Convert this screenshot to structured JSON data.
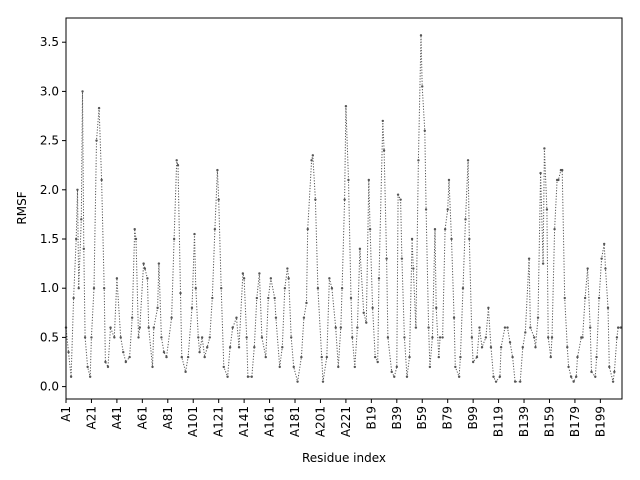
{
  "chart_data": {
    "type": "line",
    "title": "",
    "xlabel": "Residue index",
    "ylabel": "RMSF",
    "xlim": [
      0,
      437
    ],
    "ylim": [
      -0.126,
      3.746
    ],
    "grid": false,
    "line_style": "dotted",
    "color": "#555555",
    "yticks": [
      0.0,
      0.5,
      1.0,
      1.5,
      2.0,
      2.5,
      3.0,
      3.5
    ],
    "ytick_labels": [
      "0.0",
      "0.5",
      "1.0",
      "1.5",
      "2.0",
      "2.5",
      "3.0",
      "3.5"
    ],
    "xticks": [
      0,
      20,
      40,
      60,
      80,
      100,
      120,
      140,
      160,
      180,
      200,
      220,
      240,
      260,
      280,
      300,
      320,
      340,
      360,
      380,
      400,
      420
    ],
    "xtick_labels": [
      "A1",
      "A21",
      "A41",
      "A61",
      "A81",
      "A101",
      "A121",
      "A141",
      "A161",
      "A181",
      "A201",
      "A221",
      "B19",
      "B39",
      "B59",
      "B79",
      "B99",
      "B119",
      "B139",
      "B159",
      "B179",
      "B199"
    ],
    "series": [
      {
        "name": "RMSF",
        "points": [
          [
            0,
            0.6
          ],
          [
            2,
            0.35
          ],
          [
            4,
            0.1
          ],
          [
            6,
            0.9
          ],
          [
            8,
            1.5
          ],
          [
            9,
            2.0
          ],
          [
            10,
            1.0
          ],
          [
            12,
            1.7
          ],
          [
            13,
            3.0
          ],
          [
            14,
            1.4
          ],
          [
            15,
            0.5
          ],
          [
            17,
            0.2
          ],
          [
            19,
            0.1
          ],
          [
            20,
            0.5
          ],
          [
            22,
            1.0
          ],
          [
            24,
            2.5
          ],
          [
            26,
            2.83
          ],
          [
            28,
            2.1
          ],
          [
            30,
            1.0
          ],
          [
            31,
            0.25
          ],
          [
            33,
            0.2
          ],
          [
            35,
            0.6
          ],
          [
            38,
            0.5
          ],
          [
            40,
            1.1
          ],
          [
            43,
            0.5
          ],
          [
            45,
            0.35
          ],
          [
            47,
            0.25
          ],
          [
            50,
            0.3
          ],
          [
            52,
            0.7
          ],
          [
            54,
            1.6
          ],
          [
            55,
            1.5
          ],
          [
            57,
            0.5
          ],
          [
            58,
            0.6
          ],
          [
            61,
            1.25
          ],
          [
            62,
            1.2
          ],
          [
            64,
            1.1
          ],
          [
            65,
            0.6
          ],
          [
            68,
            0.2
          ],
          [
            69,
            0.6
          ],
          [
            72,
            0.8
          ],
          [
            73,
            1.25
          ],
          [
            75,
            0.5
          ],
          [
            77,
            0.35
          ],
          [
            79,
            0.3
          ],
          [
            83,
            0.7
          ],
          [
            85,
            1.5
          ],
          [
            87,
            2.3
          ],
          [
            88,
            2.25
          ],
          [
            90,
            0.95
          ],
          [
            91,
            0.3
          ],
          [
            94,
            0.15
          ],
          [
            96,
            0.3
          ],
          [
            99,
            0.8
          ],
          [
            101,
            1.55
          ],
          [
            102,
            1.0
          ],
          [
            104,
            0.5
          ],
          [
            105,
            0.35
          ],
          [
            107,
            0.5
          ],
          [
            109,
            0.3
          ],
          [
            111,
            0.4
          ],
          [
            113,
            0.5
          ],
          [
            115,
            0.9
          ],
          [
            117,
            1.6
          ],
          [
            119,
            2.2
          ],
          [
            120,
            1.9
          ],
          [
            122,
            1.0
          ],
          [
            124,
            0.2
          ],
          [
            127,
            0.1
          ],
          [
            129,
            0.4
          ],
          [
            131,
            0.6
          ],
          [
            134,
            0.7
          ],
          [
            136,
            0.4
          ],
          [
            139,
            1.15
          ],
          [
            140,
            1.1
          ],
          [
            142,
            0.5
          ],
          [
            143,
            0.1
          ],
          [
            146,
            0.1
          ],
          [
            148,
            0.4
          ],
          [
            150,
            0.9
          ],
          [
            152,
            1.15
          ],
          [
            154,
            0.5
          ],
          [
            157,
            0.3
          ],
          [
            159,
            0.9
          ],
          [
            161,
            1.1
          ],
          [
            164,
            0.9
          ],
          [
            165,
            0.7
          ],
          [
            168,
            0.2
          ],
          [
            170,
            0.4
          ],
          [
            172,
            1.0
          ],
          [
            174,
            1.2
          ],
          [
            175,
            1.1
          ],
          [
            177,
            0.5
          ],
          [
            179,
            0.2
          ],
          [
            182,
            0.05
          ],
          [
            185,
            0.3
          ],
          [
            187,
            0.7
          ],
          [
            189,
            0.85
          ],
          [
            190,
            1.6
          ],
          [
            193,
            2.3
          ],
          [
            194,
            2.35
          ],
          [
            196,
            1.9
          ],
          [
            198,
            1.0
          ],
          [
            201,
            0.3
          ],
          [
            202,
            0.05
          ],
          [
            205,
            0.3
          ],
          [
            207,
            1.1
          ],
          [
            209,
            1.0
          ],
          [
            212,
            0.6
          ],
          [
            214,
            0.2
          ],
          [
            216,
            0.6
          ],
          [
            217,
            1.0
          ],
          [
            219,
            1.9
          ],
          [
            220,
            2.85
          ],
          [
            222,
            2.1
          ],
          [
            224,
            0.9
          ],
          [
            225,
            0.5
          ],
          [
            227,
            0.2
          ],
          [
            229,
            0.6
          ],
          [
            231,
            1.4
          ],
          [
            234,
            0.75
          ],
          [
            236,
            0.65
          ],
          [
            238,
            2.1
          ],
          [
            239,
            1.6
          ],
          [
            241,
            0.8
          ],
          [
            243,
            0.3
          ],
          [
            245,
            0.25
          ],
          [
            246,
            1.1
          ],
          [
            249,
            2.7
          ],
          [
            250,
            2.4
          ],
          [
            252,
            1.3
          ],
          [
            253,
            0.5
          ],
          [
            256,
            0.15
          ],
          [
            258,
            0.1
          ],
          [
            260,
            0.2
          ],
          [
            261,
            1.95
          ],
          [
            263,
            1.9
          ],
          [
            264,
            1.3
          ],
          [
            266,
            0.5
          ],
          [
            268,
            0.1
          ],
          [
            270,
            0.3
          ],
          [
            272,
            1.5
          ],
          [
            273,
            1.2
          ],
          [
            275,
            0.6
          ],
          [
            277,
            2.3
          ],
          [
            279,
            3.57
          ],
          [
            280,
            3.05
          ],
          [
            282,
            2.6
          ],
          [
            283,
            1.8
          ],
          [
            285,
            0.6
          ],
          [
            286,
            0.2
          ],
          [
            288,
            0.5
          ],
          [
            290,
            1.6
          ],
          [
            291,
            0.8
          ],
          [
            293,
            0.3
          ],
          [
            294,
            0.5
          ],
          [
            296,
            0.5
          ],
          [
            298,
            1.6
          ],
          [
            300,
            1.8
          ],
          [
            301,
            2.1
          ],
          [
            303,
            1.5
          ],
          [
            305,
            0.7
          ],
          [
            306,
            0.2
          ],
          [
            309,
            0.1
          ],
          [
            310,
            0.3
          ],
          [
            312,
            1.0
          ],
          [
            314,
            1.7
          ],
          [
            316,
            2.3
          ],
          [
            317,
            1.5
          ],
          [
            319,
            0.5
          ],
          [
            320,
            0.25
          ],
          [
            323,
            0.3
          ],
          [
            325,
            0.6
          ],
          [
            327,
            0.4
          ],
          [
            330,
            0.5
          ],
          [
            332,
            0.8
          ],
          [
            334,
            0.4
          ],
          [
            336,
            0.1
          ],
          [
            338,
            0.05
          ],
          [
            341,
            0.1
          ],
          [
            342,
            0.4
          ],
          [
            345,
            0.6
          ],
          [
            347,
            0.6
          ],
          [
            349,
            0.45
          ],
          [
            351,
            0.3
          ],
          [
            353,
            0.05
          ],
          [
            357,
            0.05
          ],
          [
            359,
            0.4
          ],
          [
            361,
            0.55
          ],
          [
            364,
            1.3
          ],
          [
            365,
            0.6
          ],
          [
            368,
            0.5
          ],
          [
            369,
            0.4
          ],
          [
            371,
            0.7
          ],
          [
            373,
            2.17
          ],
          [
            375,
            1.25
          ],
          [
            376,
            2.42
          ],
          [
            378,
            1.8
          ],
          [
            379,
            0.5
          ],
          [
            381,
            0.3
          ],
          [
            382,
            0.5
          ],
          [
            384,
            1.6
          ],
          [
            386,
            2.1
          ],
          [
            387,
            2.1
          ],
          [
            389,
            2.2
          ],
          [
            390,
            2.2
          ],
          [
            392,
            0.9
          ],
          [
            394,
            0.4
          ],
          [
            395,
            0.2
          ],
          [
            397,
            0.1
          ],
          [
            399,
            0.05
          ],
          [
            401,
            0.1
          ],
          [
            402,
            0.3
          ],
          [
            405,
            0.5
          ],
          [
            406,
            0.5
          ],
          [
            408,
            0.9
          ],
          [
            410,
            1.2
          ],
          [
            412,
            0.6
          ],
          [
            413,
            0.15
          ],
          [
            416,
            0.1
          ],
          [
            417,
            0.3
          ],
          [
            419,
            0.9
          ],
          [
            421,
            1.3
          ],
          [
            423,
            1.45
          ],
          [
            424,
            1.2
          ],
          [
            426,
            0.8
          ],
          [
            427,
            0.2
          ],
          [
            430,
            0.05
          ],
          [
            431,
            0.15
          ],
          [
            433,
            0.5
          ],
          [
            434,
            0.6
          ],
          [
            436,
            0.6
          ]
        ]
      }
    ]
  }
}
